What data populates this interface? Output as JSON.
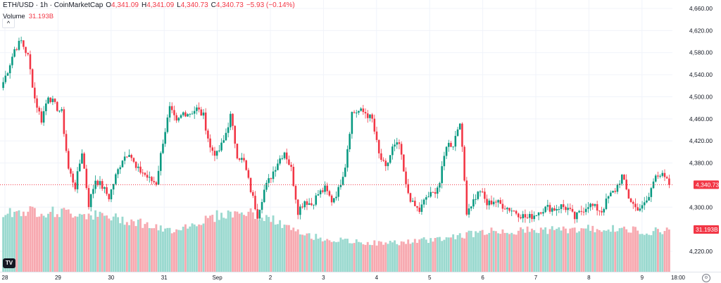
{
  "header": {
    "symbol": "ETH/USD · 1h · CoinMarketCap",
    "open_label": "O",
    "open": "4,341.09",
    "high_label": "H",
    "high": "4,341.09",
    "low_label": "L",
    "low": "4,340.73",
    "close_label": "C",
    "close": "4,340.73",
    "change": "−5.93 (−0.14%)"
  },
  "volume": {
    "label": "Volume",
    "value": "31.193B"
  },
  "colors": {
    "up": "#089981",
    "down": "#f23645",
    "up_vol": "#9ad9cf",
    "down_vol": "#f7a9b0",
    "grid": "#f0f3fa"
  },
  "chart_data": {
    "type": "candlestick",
    "title": "ETH/USD · 1h · CoinMarketCap",
    "ylim": [
      4200,
      4672
    ],
    "y_ticks": [
      "4,220.00",
      "4,300.00",
      "4,380.00",
      "4,420.00",
      "4,460.00",
      "4,500.00",
      "4,540.00",
      "4,580.00",
      "4,620.00",
      "4,660.00"
    ],
    "y_tick_values": [
      4220,
      4300,
      4380,
      4420,
      4460,
      4500,
      4540,
      4580,
      4620,
      4660
    ],
    "x_ticks": [
      "28",
      "29",
      "30",
      "31",
      "Sep",
      "2",
      "3",
      "4",
      "5",
      "6",
      "7",
      "8",
      "9",
      "18:00"
    ],
    "candles_per_day": 24,
    "last_price": "4,340.73",
    "last_price_value": 4340.73,
    "last_volume": "31.193B",
    "last_volume_value": 31.193,
    "closes_every_3h": [
      4516,
      4548,
      4586,
      4601,
      4573,
      4497,
      4458,
      4503,
      4484,
      4471,
      4369,
      4337,
      4401,
      4305,
      4350,
      4337,
      4318,
      4356,
      4388,
      4401,
      4369,
      4363,
      4350,
      4344,
      4420,
      4478,
      4452,
      4471,
      4471,
      4478,
      4465,
      4407,
      4395,
      4420,
      4465,
      4395,
      4382,
      4331,
      4286,
      4331,
      4356,
      4382,
      4401,
      4369,
      4293,
      4312,
      4305,
      4324,
      4333,
      4312,
      4331,
      4376,
      4471,
      4474,
      4471,
      4458,
      4395,
      4369,
      4407,
      4414,
      4337,
      4305,
      4293,
      4318,
      4324,
      4344,
      4414,
      4414,
      4458,
      4293,
      4312,
      4331,
      4305,
      4312,
      4305,
      4299,
      4293,
      4286,
      4280,
      4286,
      4295,
      4299,
      4297,
      4302,
      4297,
      4280,
      4293,
      4305,
      4299,
      4293,
      4318,
      4331,
      4356,
      4318,
      4299,
      4299,
      4318,
      4363,
      4356,
      4341
    ],
    "volume_billions_every_12h": [
      44,
      45,
      44,
      43,
      40,
      37,
      30,
      35,
      42,
      44,
      38,
      28,
      24,
      22,
      21,
      22,
      24,
      27,
      30,
      30,
      31,
      31,
      32,
      31,
      30,
      31,
      32,
      33,
      34,
      36,
      44,
      45,
      40,
      28,
      20,
      19,
      19,
      20,
      19,
      19,
      21,
      24,
      28,
      33,
      31
    ]
  }
}
